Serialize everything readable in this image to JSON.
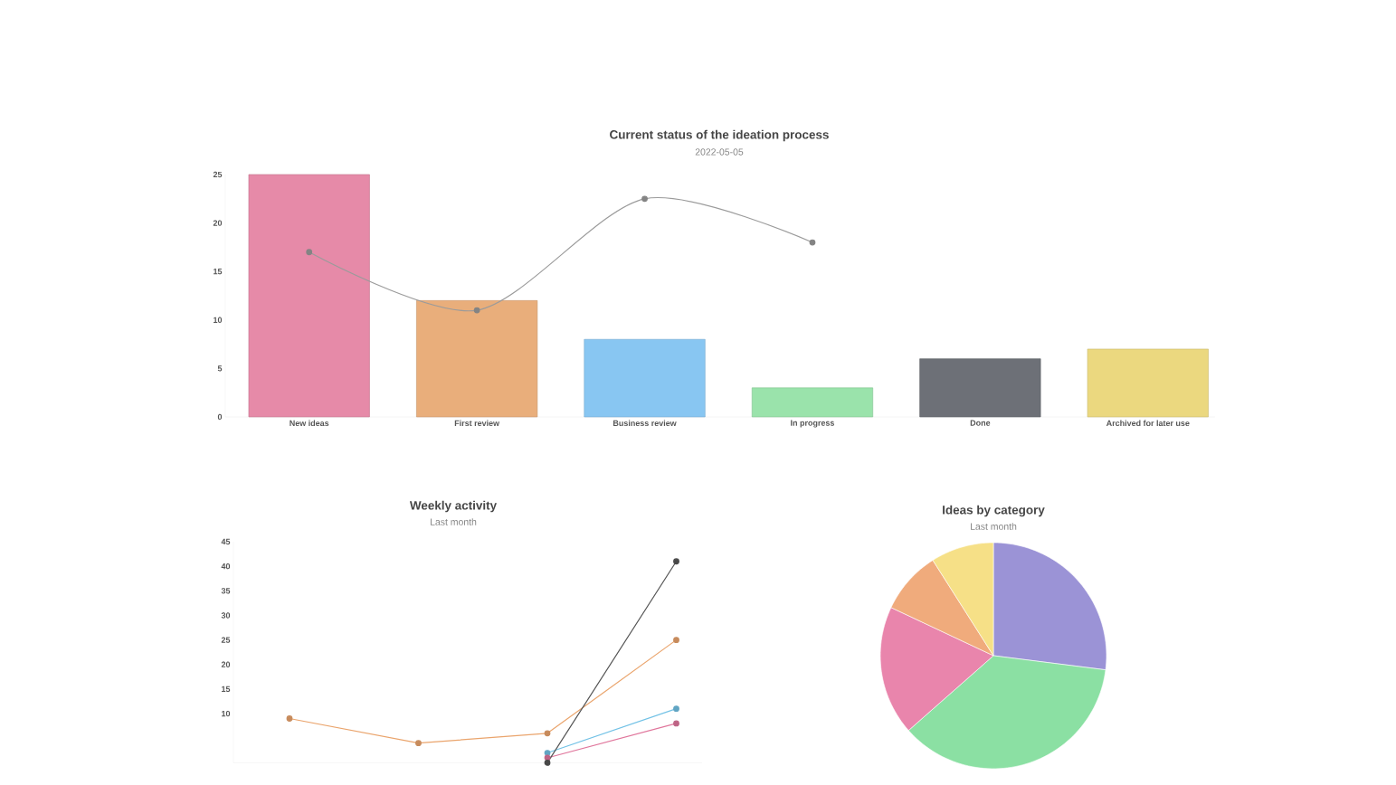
{
  "chart_data": [
    {
      "type": "bar",
      "title": "Current status of the ideation process",
      "subtitle": "2022-05-05",
      "categories": [
        "New ideas",
        "First review",
        "Business review",
        "In progress",
        "Done",
        "Archived for later use"
      ],
      "series": [
        {
          "type": "bar",
          "colors": [
            "#e68aa8",
            "#e9ae7b",
            "#88c6f2",
            "#9ae3ab",
            "#6d7077",
            "#ebd87f"
          ],
          "values": [
            25,
            12,
            8,
            3,
            6,
            7
          ]
        },
        {
          "type": "line",
          "color": "#9b9b9b",
          "marker": "circle",
          "values": [
            17,
            11,
            22.5,
            18,
            null,
            null
          ]
        }
      ],
      "ylim": [
        0,
        25
      ],
      "yticks": [
        0,
        5,
        10,
        15,
        20,
        25
      ]
    },
    {
      "type": "line",
      "title": "Weekly activity",
      "subtitle": "Last month",
      "categories": [
        null,
        null,
        null,
        null
      ],
      "series": [
        {
          "color": "#eaa46c",
          "values": [
            9,
            4,
            6,
            25
          ]
        },
        {
          "color": "#72c2e6",
          "values": [
            null,
            null,
            2,
            11
          ]
        },
        {
          "color": "#e0769c",
          "values": [
            null,
            null,
            1,
            8
          ]
        },
        {
          "color": "#555555",
          "values": [
            null,
            null,
            0,
            41
          ]
        }
      ],
      "ylim": [
        0,
        45
      ],
      "yticks": [
        10,
        15,
        20,
        25,
        30,
        35,
        40,
        45
      ],
      "marker": "circle"
    },
    {
      "type": "pie",
      "title": "Ideas by category",
      "subtitle": "Last month",
      "categories": [
        null,
        null,
        null,
        null,
        null
      ],
      "values": [
        27,
        36.5,
        18.5,
        9,
        9
      ],
      "colors": [
        "#9b93d6",
        "#8be0a3",
        "#e985ac",
        "#f0ab7c",
        "#f6e087"
      ]
    }
  ]
}
